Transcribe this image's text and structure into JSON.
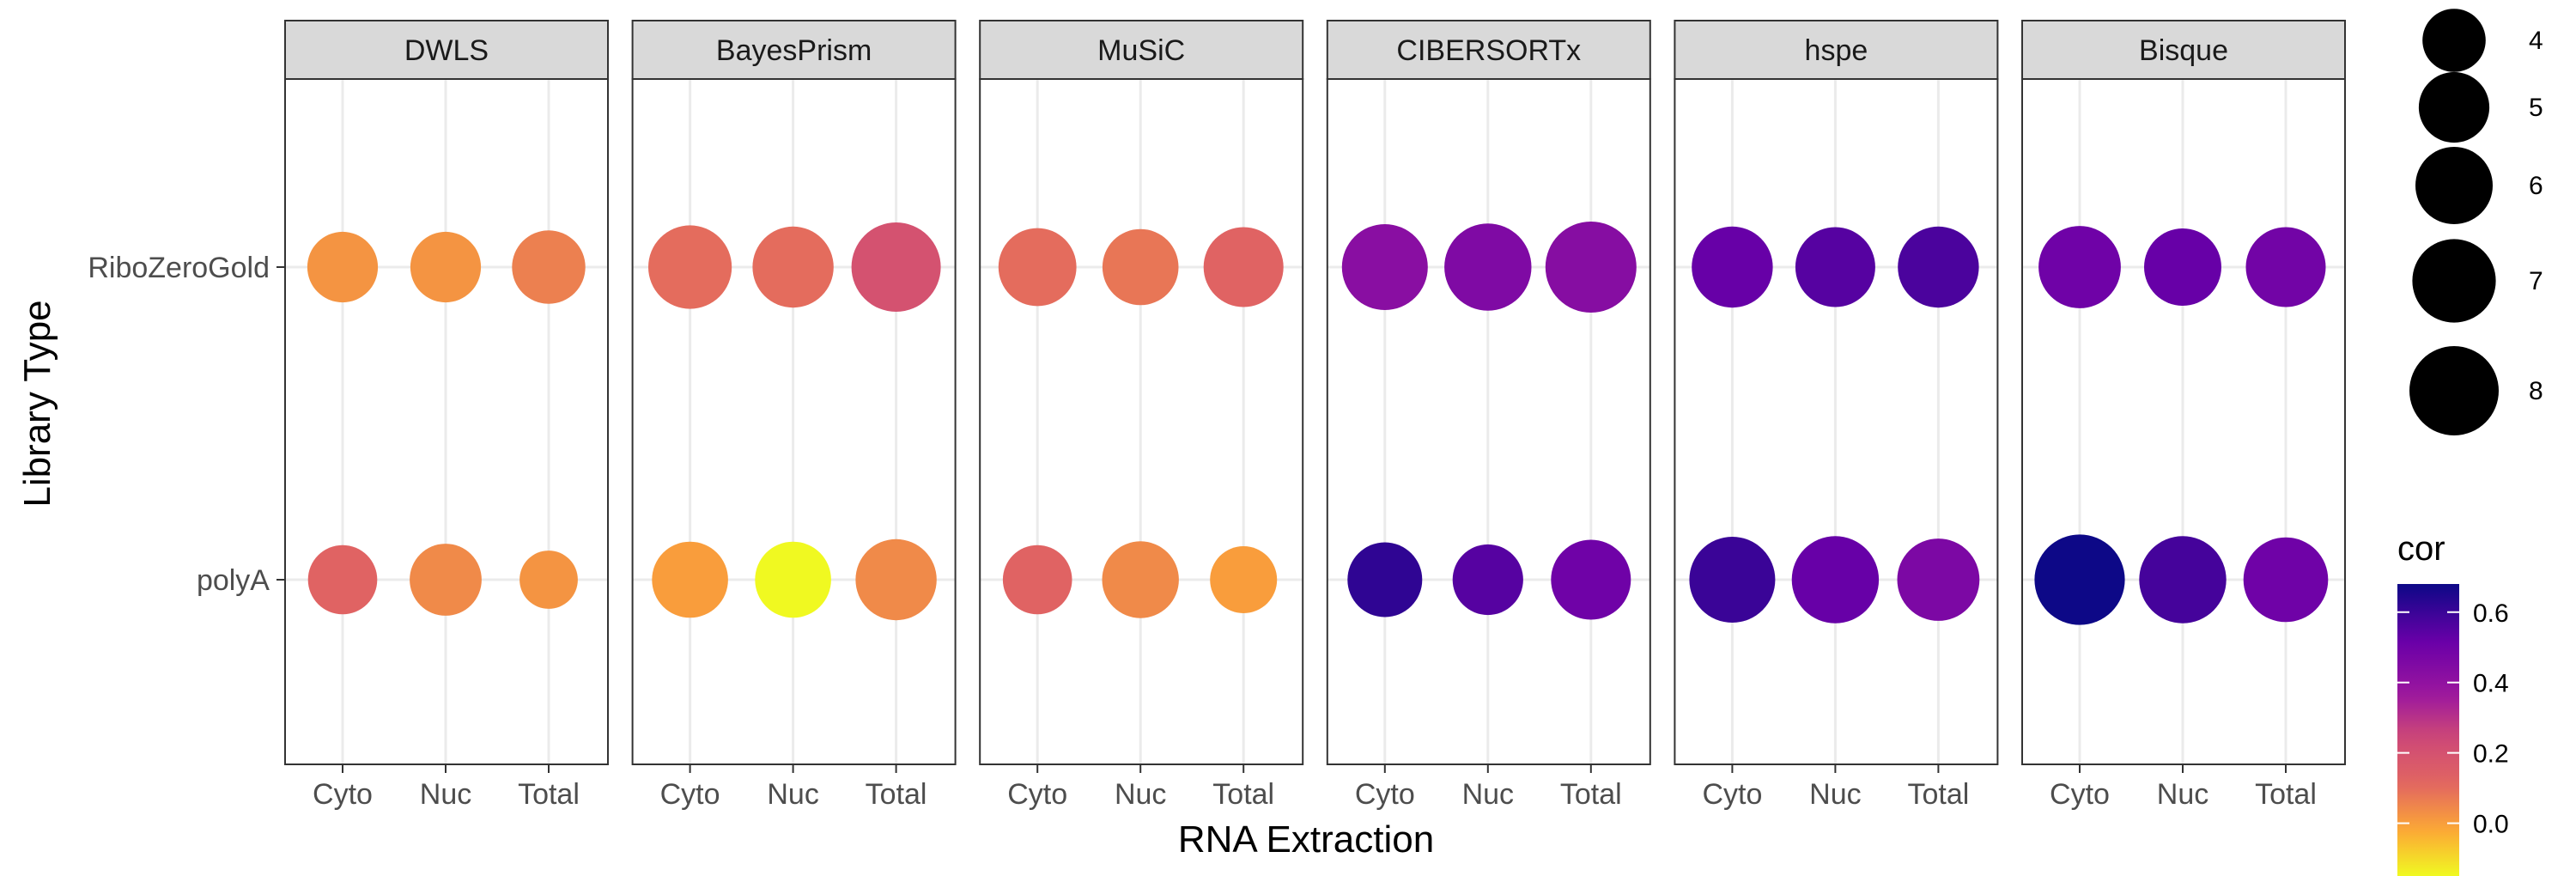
{
  "chart_data": {
    "type": "scatter",
    "xlabel": "RNA Extraction",
    "ylabel": "Library Type",
    "x_categories": [
      "Cyto",
      "Nuc",
      "Total"
    ],
    "y_categories": [
      "RiboZeroGold",
      "polyA"
    ],
    "grid": true,
    "legend_position": "right",
    "panels": [
      {
        "name": "DWLS",
        "points": [
          {
            "x": "Cyto",
            "y": "RiboZeroGold",
            "size": 5.0,
            "cor": 0.02
          },
          {
            "x": "Nuc",
            "y": "RiboZeroGold",
            "size": 5.0,
            "cor": 0.02
          },
          {
            "x": "Total",
            "y": "RiboZeroGold",
            "size": 5.4,
            "cor": 0.06
          },
          {
            "x": "Cyto",
            "y": "polyA",
            "size": 4.8,
            "cor": 0.12
          },
          {
            "x": "Nuc",
            "y": "polyA",
            "size": 5.2,
            "cor": 0.04
          },
          {
            "x": "Total",
            "y": "polyA",
            "size": 3.4,
            "cor": 0.02
          }
        ]
      },
      {
        "name": "BayesPrism",
        "points": [
          {
            "x": "Cyto",
            "y": "RiboZeroGold",
            "size": 7.0,
            "cor": 0.1
          },
          {
            "x": "Nuc",
            "y": "RiboZeroGold",
            "size": 6.6,
            "cor": 0.1
          },
          {
            "x": "Total",
            "y": "RiboZeroGold",
            "size": 8.0,
            "cor": 0.2
          },
          {
            "x": "Cyto",
            "y": "polyA",
            "size": 5.8,
            "cor": 0.0
          },
          {
            "x": "Nuc",
            "y": "polyA",
            "size": 5.8,
            "cor": -0.15
          },
          {
            "x": "Total",
            "y": "polyA",
            "size": 6.6,
            "cor": 0.04
          }
        ]
      },
      {
        "name": "MuSiC",
        "points": [
          {
            "x": "Cyto",
            "y": "RiboZeroGold",
            "size": 6.1,
            "cor": 0.1
          },
          {
            "x": "Nuc",
            "y": "RiboZeroGold",
            "size": 5.8,
            "cor": 0.08
          },
          {
            "x": "Total",
            "y": "RiboZeroGold",
            "size": 6.4,
            "cor": 0.12
          },
          {
            "x": "Cyto",
            "y": "polyA",
            "size": 4.8,
            "cor": 0.12
          },
          {
            "x": "Nuc",
            "y": "polyA",
            "size": 5.9,
            "cor": 0.04
          },
          {
            "x": "Total",
            "y": "polyA",
            "size": 4.5,
            "cor": 0.0
          }
        ]
      },
      {
        "name": "CIBERSORTx",
        "points": [
          {
            "x": "Cyto",
            "y": "RiboZeroGold",
            "size": 7.4,
            "cor": 0.42
          },
          {
            "x": "Nuc",
            "y": "RiboZeroGold",
            "size": 7.6,
            "cor": 0.45
          },
          {
            "x": "Total",
            "y": "RiboZeroGold",
            "size": 8.3,
            "cor": 0.43
          },
          {
            "x": "Cyto",
            "y": "polyA",
            "size": 5.6,
            "cor": 0.62
          },
          {
            "x": "Nuc",
            "y": "polyA",
            "size": 5.0,
            "cor": 0.55
          },
          {
            "x": "Total",
            "y": "polyA",
            "size": 6.4,
            "cor": 0.5
          }
        ]
      },
      {
        "name": "hspe",
        "points": [
          {
            "x": "Cyto",
            "y": "RiboZeroGold",
            "size": 6.6,
            "cor": 0.52
          },
          {
            "x": "Nuc",
            "y": "RiboZeroGold",
            "size": 6.4,
            "cor": 0.55
          },
          {
            "x": "Total",
            "y": "RiboZeroGold",
            "size": 6.6,
            "cor": 0.57
          },
          {
            "x": "Cyto",
            "y": "polyA",
            "size": 7.4,
            "cor": 0.6
          },
          {
            "x": "Nuc",
            "y": "polyA",
            "size": 7.6,
            "cor": 0.52
          },
          {
            "x": "Total",
            "y": "polyA",
            "size": 6.8,
            "cor": 0.46
          }
        ]
      },
      {
        "name": "Bisque",
        "points": [
          {
            "x": "Cyto",
            "y": "RiboZeroGold",
            "size": 6.8,
            "cor": 0.5
          },
          {
            "x": "Nuc",
            "y": "RiboZeroGold",
            "size": 6.0,
            "cor": 0.52
          },
          {
            "x": "Total",
            "y": "RiboZeroGold",
            "size": 6.4,
            "cor": 0.49
          },
          {
            "x": "Cyto",
            "y": "polyA",
            "size": 8.2,
            "cor": 0.68
          },
          {
            "x": "Nuc",
            "y": "polyA",
            "size": 7.6,
            "cor": 0.58
          },
          {
            "x": "Total",
            "y": "polyA",
            "size": 7.2,
            "cor": 0.5
          }
        ]
      }
    ],
    "size_legend": {
      "title": "",
      "breaks": [
        4,
        5,
        6,
        7,
        8
      ]
    },
    "color_legend": {
      "title": "cor",
      "breaks": [
        0.0,
        0.2,
        0.4,
        0.6
      ],
      "labels": [
        "0.0",
        "0.2",
        "0.4",
        "0.6"
      ],
      "range": [
        -0.15,
        0.68
      ],
      "palette": "plasma"
    }
  }
}
